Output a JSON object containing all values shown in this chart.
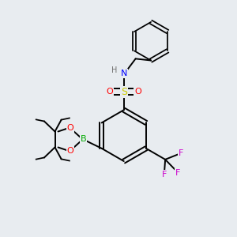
{
  "background_color": "#e8ecf0",
  "line_color": "#000000",
  "bond_width": 1.4,
  "colors": {
    "N": "#0000ff",
    "O": "#ff0000",
    "S": "#cccc00",
    "B": "#00aa00",
    "F": "#cc00cc",
    "H": "#707070",
    "C": "#000000"
  },
  "fig_width": 3.0,
  "fig_height": 3.0,
  "dpi": 100
}
